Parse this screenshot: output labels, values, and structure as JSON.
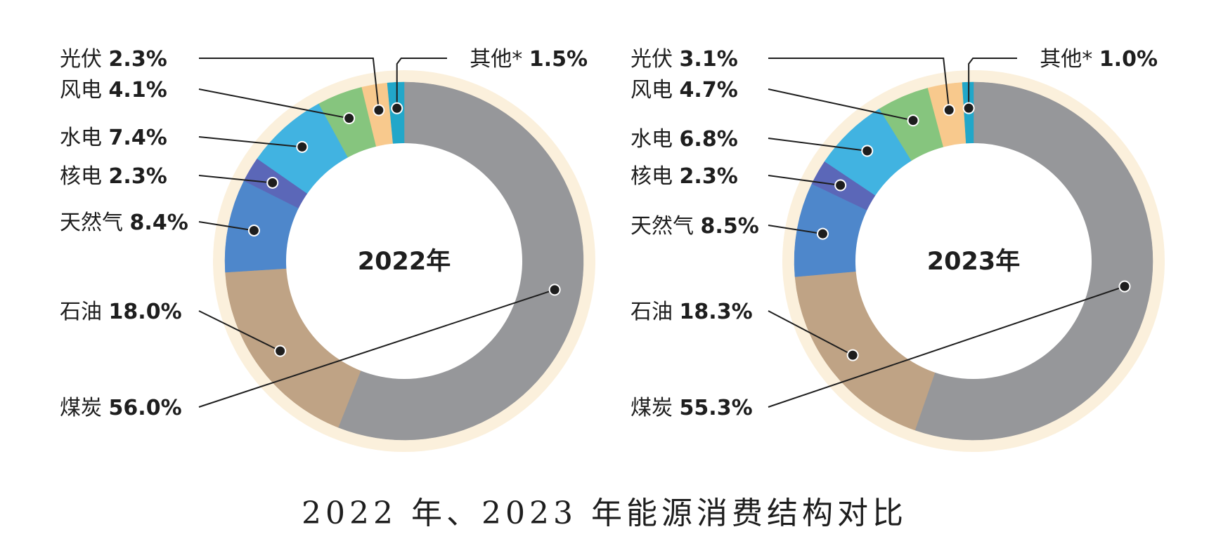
{
  "chart_data": [
    {
      "type": "pie",
      "variant": "donut",
      "center_label": "2022年",
      "slices": [
        {
          "name": "煤炭",
          "value": 56.0,
          "value_label": "56.0%",
          "color": "#96979a"
        },
        {
          "name": "石油",
          "value": 18.0,
          "value_label": "18.0%",
          "color": "#bfa385"
        },
        {
          "name": "天然气",
          "value": 8.4,
          "value_label": "8.4%",
          "color": "#4e87cb"
        },
        {
          "name": "核电",
          "value": 2.3,
          "value_label": "2.3%",
          "color": "#5b67b8"
        },
        {
          "name": "水电",
          "value": 7.4,
          "value_label": "7.4%",
          "color": "#41b3e1"
        },
        {
          "name": "风电",
          "value": 4.1,
          "value_label": "4.1%",
          "color": "#86c57e"
        },
        {
          "name": "光伏",
          "value": 2.3,
          "value_label": "2.3%",
          "color": "#f8c98d"
        },
        {
          "name": "其他*",
          "value": 1.5,
          "value_label": "1.5%",
          "color": "#22a7c9"
        }
      ]
    },
    {
      "type": "pie",
      "variant": "donut",
      "center_label": "2023年",
      "slices": [
        {
          "name": "煤炭",
          "value": 55.3,
          "value_label": "55.3%",
          "color": "#96979a"
        },
        {
          "name": "石油",
          "value": 18.3,
          "value_label": "18.3%",
          "color": "#bfa385"
        },
        {
          "name": "天然气",
          "value": 8.5,
          "value_label": "8.5%",
          "color": "#4e87cb"
        },
        {
          "name": "核电",
          "value": 2.3,
          "value_label": "2.3%",
          "color": "#5b67b8"
        },
        {
          "name": "水电",
          "value": 6.8,
          "value_label": "6.8%",
          "color": "#41b3e1"
        },
        {
          "name": "风电",
          "value": 4.7,
          "value_label": "4.7%",
          "color": "#86c57e"
        },
        {
          "name": "光伏",
          "value": 3.1,
          "value_label": "3.1%",
          "color": "#f8c98d"
        },
        {
          "name": "其他*",
          "value": 1.0,
          "value_label": "1.0%",
          "color": "#22a7c9"
        }
      ]
    }
  ],
  "caption": "2022 年、2023 年能源消费结构对比",
  "colors": {
    "halo": "#fbf0dc",
    "leader": "#1e1e1e"
  }
}
